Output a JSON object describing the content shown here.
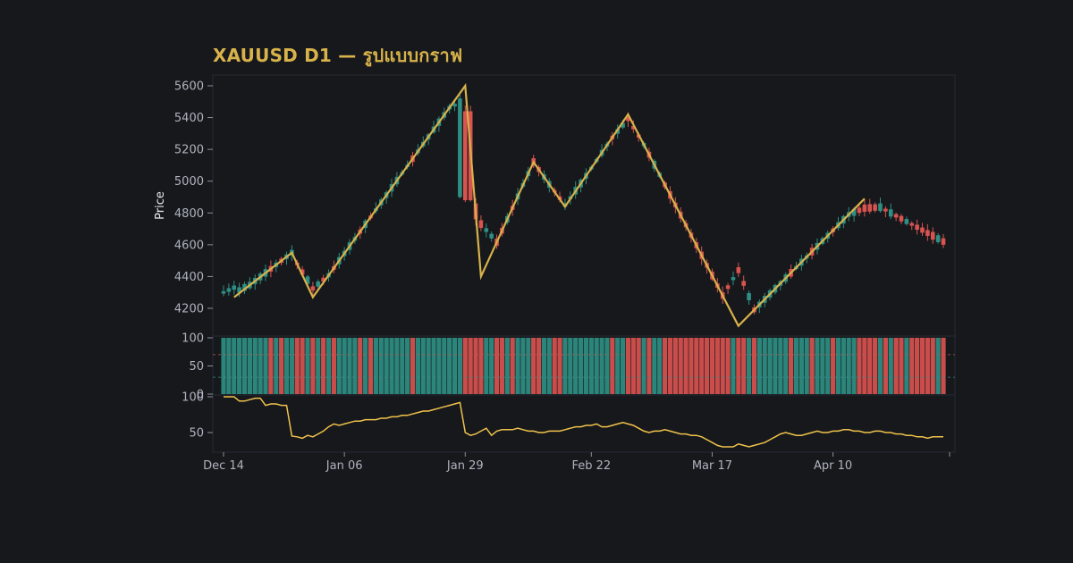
{
  "header": {
    "title": "XAUUSD D1 — รูปแบบกราฟ"
  },
  "colors": {
    "background": "#16181c",
    "up": "#2f8f83",
    "down": "#d9534f",
    "zigzag": "#d8b24a",
    "lower_line": "#f0c24b",
    "grid_border": "#262b35"
  },
  "chart_data": {
    "type": "candlestick",
    "title": "XAUUSD D1 — รูปแบบกราฟ",
    "ylabel": "Price",
    "ylim": [
      4130,
      5660
    ],
    "yticks": [
      4200,
      4400,
      4600,
      4800,
      5000,
      5200,
      5400,
      5600
    ],
    "x_ticks": [
      "Dec 14",
      "Jan 06",
      "Jan 29",
      "Feb 22",
      "Mar 17",
      "Apr 10"
    ],
    "x_tick_index": [
      0,
      23,
      46,
      70,
      93,
      116
    ],
    "series_length": 138,
    "zigzag": [
      {
        "i": 2,
        "price": 4270
      },
      {
        "i": 13,
        "price": 4550
      },
      {
        "i": 17,
        "price": 4270
      },
      {
        "i": 46,
        "price": 5600
      },
      {
        "i": 49,
        "price": 4400
      },
      {
        "i": 59,
        "price": 5120
      },
      {
        "i": 65,
        "price": 4840
      },
      {
        "i": 77,
        "price": 5420
      },
      {
        "i": 98,
        "price": 4090
      },
      {
        "i": 122,
        "price": 4890
      }
    ],
    "oscillator": {
      "ylim": [
        0,
        100
      ],
      "yticks": [
        0,
        50,
        100
      ],
      "ref_levels": [
        30,
        70
      ],
      "direction": [
        "up",
        "up",
        "up",
        "up",
        "up",
        "up",
        "up",
        "up",
        "up",
        "down",
        "up",
        "down",
        "up",
        "up",
        "down",
        "down",
        "up",
        "down",
        "up",
        "down",
        "up",
        "down",
        "up",
        "up",
        "up",
        "up",
        "down",
        "up",
        "down",
        "up",
        "up",
        "up",
        "up",
        "up",
        "up",
        "up",
        "down",
        "up",
        "up",
        "up",
        "up",
        "up",
        "up",
        "up",
        "up",
        "up",
        "down",
        "down",
        "down",
        "down",
        "up",
        "up",
        "down",
        "down",
        "up",
        "down",
        "up",
        "up",
        "up",
        "down",
        "down",
        "up",
        "up",
        "down",
        "down",
        "up",
        "up",
        "up",
        "up",
        "up",
        "up",
        "up",
        "up",
        "up",
        "down",
        "up",
        "up",
        "down",
        "down",
        "down",
        "up",
        "down",
        "up",
        "up",
        "down",
        "down",
        "down",
        "down",
        "down",
        "down",
        "down",
        "down",
        "down",
        "down",
        "down",
        "down",
        "down",
        "up",
        "down",
        "down",
        "up",
        "down",
        "up",
        "up",
        "up",
        "up",
        "up",
        "up",
        "down",
        "up",
        "up",
        "up",
        "down",
        "up",
        "up",
        "up",
        "down",
        "up",
        "up",
        "up",
        "up",
        "down",
        "down",
        "down",
        "down",
        "up",
        "down",
        "up",
        "down",
        "down",
        "up",
        "down",
        "down",
        "down",
        "down",
        "down",
        "up",
        "down",
        "down"
      ]
    },
    "lower_panel": {
      "ylim": [
        25,
        100
      ],
      "yticks": [
        50,
        100
      ],
      "values": [
        100,
        100,
        100,
        94,
        94,
        96,
        98,
        98,
        88,
        90,
        90,
        88,
        88,
        45,
        44,
        42,
        46,
        44,
        48,
        52,
        58,
        62,
        60,
        62,
        64,
        66,
        66,
        68,
        68,
        68,
        70,
        70,
        72,
        72,
        74,
        74,
        76,
        78,
        80,
        80,
        82,
        84,
        86,
        88,
        90,
        92,
        50,
        46,
        48,
        52,
        56,
        46,
        52,
        54,
        54,
        54,
        56,
        54,
        52,
        52,
        50,
        50,
        52,
        52,
        52,
        54,
        56,
        58,
        58,
        60,
        60,
        62,
        58,
        58,
        60,
        62,
        64,
        62,
        60,
        56,
        52,
        50,
        52,
        52,
        54,
        52,
        50,
        48,
        48,
        46,
        46,
        44,
        40,
        36,
        32,
        30,
        30,
        30,
        34,
        32,
        30,
        32,
        34,
        36,
        40,
        44,
        48,
        50,
        48,
        46,
        46,
        48,
        50,
        52,
        50,
        50,
        52,
        52,
        54,
        54,
        52,
        52,
        50,
        50,
        52,
        52,
        50,
        50,
        48,
        48,
        46,
        46,
        44,
        44,
        42,
        44,
        44,
        44
      ]
    }
  }
}
